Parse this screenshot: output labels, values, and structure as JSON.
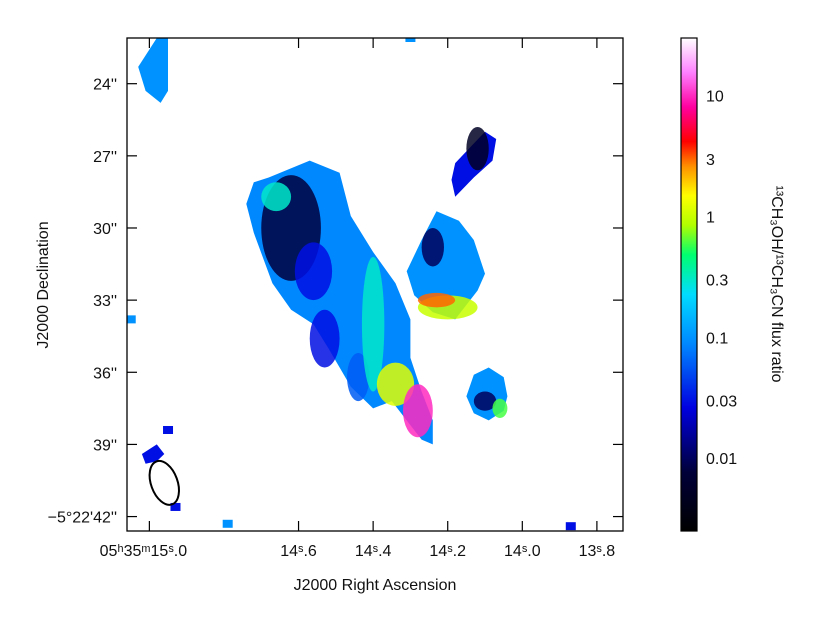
{
  "chart_data": {
    "type": "heatmap",
    "title": "",
    "xlabel": "J2000 Right Ascension",
    "ylabel": "J2000 Declination",
    "x_ticks": [
      {
        "value": 15.0,
        "label": "05ʰ35ᵐ15ˢ.0"
      },
      {
        "value": 14.6,
        "label": "14ˢ.6"
      },
      {
        "value": 14.4,
        "label": "14ˢ.4"
      },
      {
        "value": 14.2,
        "label": "14ˢ.2"
      },
      {
        "value": 14.0,
        "label": "14ˢ.0"
      },
      {
        "value": 13.8,
        "label": "13ˢ.8"
      }
    ],
    "x_range_s": [
      15.06,
      13.73
    ],
    "y_ticks": [
      {
        "value": 24,
        "label": "24''"
      },
      {
        "value": 27,
        "label": "27''"
      },
      {
        "value": 30,
        "label": "30''"
      },
      {
        "value": 33,
        "label": "33''"
      },
      {
        "value": 36,
        "label": "36''"
      },
      {
        "value": 39,
        "label": "39''"
      },
      {
        "value": 42,
        "label": "−5°22'42''"
      }
    ],
    "y_range_arcsec": [
      22.1,
      42.6
    ],
    "colorbar": {
      "label": "¹³CH₃OH/¹³CH₃CN flux ratio",
      "scale": "log",
      "range": [
        0.0025,
        30
      ],
      "ticks": [
        10,
        3,
        1,
        0.3,
        0.1,
        0.03,
        0.01
      ],
      "tick_labels": [
        "10",
        "3",
        "1",
        "0.3",
        "0.1",
        "0.03",
        "0.01"
      ],
      "colormap_stops": [
        {
          "t": 0.0,
          "color": "#000000"
        },
        {
          "t": 0.12,
          "color": "#00003a"
        },
        {
          "t": 0.25,
          "color": "#0000e0"
        },
        {
          "t": 0.38,
          "color": "#0088ff"
        },
        {
          "t": 0.48,
          "color": "#00dcff"
        },
        {
          "t": 0.56,
          "color": "#00ff70"
        },
        {
          "t": 0.62,
          "color": "#b0ff00"
        },
        {
          "t": 0.68,
          "color": "#ffff00"
        },
        {
          "t": 0.74,
          "color": "#ff9000"
        },
        {
          "t": 0.79,
          "color": "#ff0000"
        },
        {
          "t": 0.86,
          "color": "#ff00a0"
        },
        {
          "t": 0.93,
          "color": "#ff80ff"
        },
        {
          "t": 1.0,
          "color": "#ffffff"
        }
      ]
    },
    "beam": {
      "ra_s": 14.96,
      "dec_arcsec": 40.6,
      "bmaj_arcsec": 1.9,
      "bmin_arcsec": 1.1,
      "pa_deg": -20
    },
    "regions": [
      {
        "id": "main-filament",
        "polygon": [
          [
            14.68,
            27.9
          ],
          [
            14.57,
            27.2
          ],
          [
            14.49,
            27.7
          ],
          [
            14.46,
            29.5
          ],
          [
            14.4,
            31.0
          ],
          [
            14.34,
            32.3
          ],
          [
            14.3,
            33.8
          ],
          [
            14.3,
            35.4
          ],
          [
            14.27,
            36.8
          ],
          [
            14.24,
            38.0
          ],
          [
            14.24,
            39.0
          ],
          [
            14.27,
            38.8
          ],
          [
            14.35,
            37.2
          ],
          [
            14.4,
            37.5
          ],
          [
            14.46,
            36.6
          ],
          [
            14.52,
            35.0
          ],
          [
            14.56,
            34.0
          ],
          [
            14.62,
            33.4
          ],
          [
            14.67,
            32.3
          ],
          [
            14.72,
            30.2
          ],
          [
            14.74,
            29.0
          ],
          [
            14.72,
            28.1
          ]
        ],
        "ratio": 0.09
      },
      {
        "id": "northeast-clump",
        "polygon": [
          [
            14.18,
            27.3
          ],
          [
            14.1,
            26.0
          ],
          [
            14.07,
            26.3
          ],
          [
            14.08,
            27.2
          ],
          [
            14.13,
            27.9
          ],
          [
            14.18,
            28.7
          ],
          [
            14.19,
            28.0
          ]
        ],
        "ratio": 0.03
      },
      {
        "id": "east-clump",
        "polygon": [
          [
            14.27,
            30.5
          ],
          [
            14.23,
            29.3
          ],
          [
            14.17,
            29.7
          ],
          [
            14.13,
            30.5
          ],
          [
            14.1,
            31.9
          ],
          [
            14.12,
            32.6
          ],
          [
            14.18,
            33.8
          ],
          [
            14.24,
            33.5
          ],
          [
            14.29,
            32.8
          ],
          [
            14.31,
            31.8
          ]
        ],
        "ratio": 0.1
      },
      {
        "id": "southeast-clump",
        "polygon": [
          [
            14.13,
            36.1
          ],
          [
            14.09,
            35.8
          ],
          [
            14.05,
            36.2
          ],
          [
            14.04,
            37.0
          ],
          [
            14.05,
            37.6
          ],
          [
            14.09,
            38.0
          ],
          [
            14.13,
            37.7
          ],
          [
            14.15,
            37.0
          ]
        ],
        "ratio": 0.1
      },
      {
        "id": "north-west-fragment",
        "polygon": [
          [
            15.03,
            23.3
          ],
          [
            14.98,
            22.1
          ],
          [
            14.95,
            22.1
          ],
          [
            14.95,
            23.6
          ],
          [
            14.95,
            24.3
          ],
          [
            14.97,
            24.8
          ],
          [
            15.01,
            24.3
          ]
        ],
        "ratio": 0.1
      },
      {
        "id": "south-west-fragment",
        "polygon": [
          [
            15.02,
            39.4
          ],
          [
            14.98,
            39.0
          ],
          [
            14.96,
            39.4
          ],
          [
            14.98,
            39.7
          ],
          [
            15.01,
            39.8
          ]
        ],
        "ratio": 0.03
      }
    ],
    "blobs": [
      {
        "ra_s": 14.62,
        "dec_arcsec": 30.0,
        "rx": 0.08,
        "ry": 2.2,
        "ratio": 0.008
      },
      {
        "ra_s": 14.56,
        "dec_arcsec": 31.8,
        "rx": 0.05,
        "ry": 1.2,
        "ratio": 0.03
      },
      {
        "ra_s": 14.53,
        "dec_arcsec": 34.6,
        "rx": 0.04,
        "ry": 1.2,
        "ratio": 0.03
      },
      {
        "ra_s": 14.44,
        "dec_arcsec": 36.2,
        "rx": 0.03,
        "ry": 1.0,
        "ratio": 0.06
      },
      {
        "ra_s": 14.66,
        "dec_arcsec": 28.7,
        "rx": 0.04,
        "ry": 0.6,
        "ratio": 0.3
      },
      {
        "ra_s": 14.4,
        "dec_arcsec": 34.0,
        "rx": 0.03,
        "ry": 2.8,
        "ratio": 0.3
      },
      {
        "ra_s": 14.34,
        "dec_arcsec": 36.5,
        "rx": 0.05,
        "ry": 0.9,
        "ratio": 1.2
      },
      {
        "ra_s": 14.28,
        "dec_arcsec": 37.6,
        "rx": 0.04,
        "ry": 1.1,
        "ratio": 10
      },
      {
        "ra_s": 14.24,
        "dec_arcsec": 30.8,
        "rx": 0.03,
        "ry": 0.8,
        "ratio": 0.01
      },
      {
        "ra_s": 14.2,
        "dec_arcsec": 33.3,
        "rx": 0.08,
        "ry": 0.5,
        "ratio": 1.0
      },
      {
        "ra_s": 14.23,
        "dec_arcsec": 33.0,
        "rx": 0.05,
        "ry": 0.3,
        "ratio": 3
      },
      {
        "ra_s": 14.12,
        "dec_arcsec": 26.7,
        "rx": 0.03,
        "ry": 0.9,
        "ratio": 0.005
      },
      {
        "ra_s": 14.1,
        "dec_arcsec": 37.2,
        "rx": 0.03,
        "ry": 0.4,
        "ratio": 0.01
      },
      {
        "ra_s": 14.06,
        "dec_arcsec": 37.5,
        "rx": 0.02,
        "ry": 0.4,
        "ratio": 0.6
      }
    ],
    "specks": [
      {
        "ra_s": 14.79,
        "dec_arcsec": 42.3,
        "ratio": 0.1
      },
      {
        "ra_s": 13.87,
        "dec_arcsec": 42.4,
        "ratio": 0.03
      },
      {
        "ra_s": 14.95,
        "dec_arcsec": 38.4,
        "ratio": 0.03
      },
      {
        "ra_s": 14.93,
        "dec_arcsec": 41.6,
        "ratio": 0.03
      },
      {
        "ra_s": 15.05,
        "dec_arcsec": 33.8,
        "ratio": 0.1
      },
      {
        "ra_s": 14.3,
        "dec_arcsec": 22.1,
        "ratio": 0.1
      }
    ]
  }
}
